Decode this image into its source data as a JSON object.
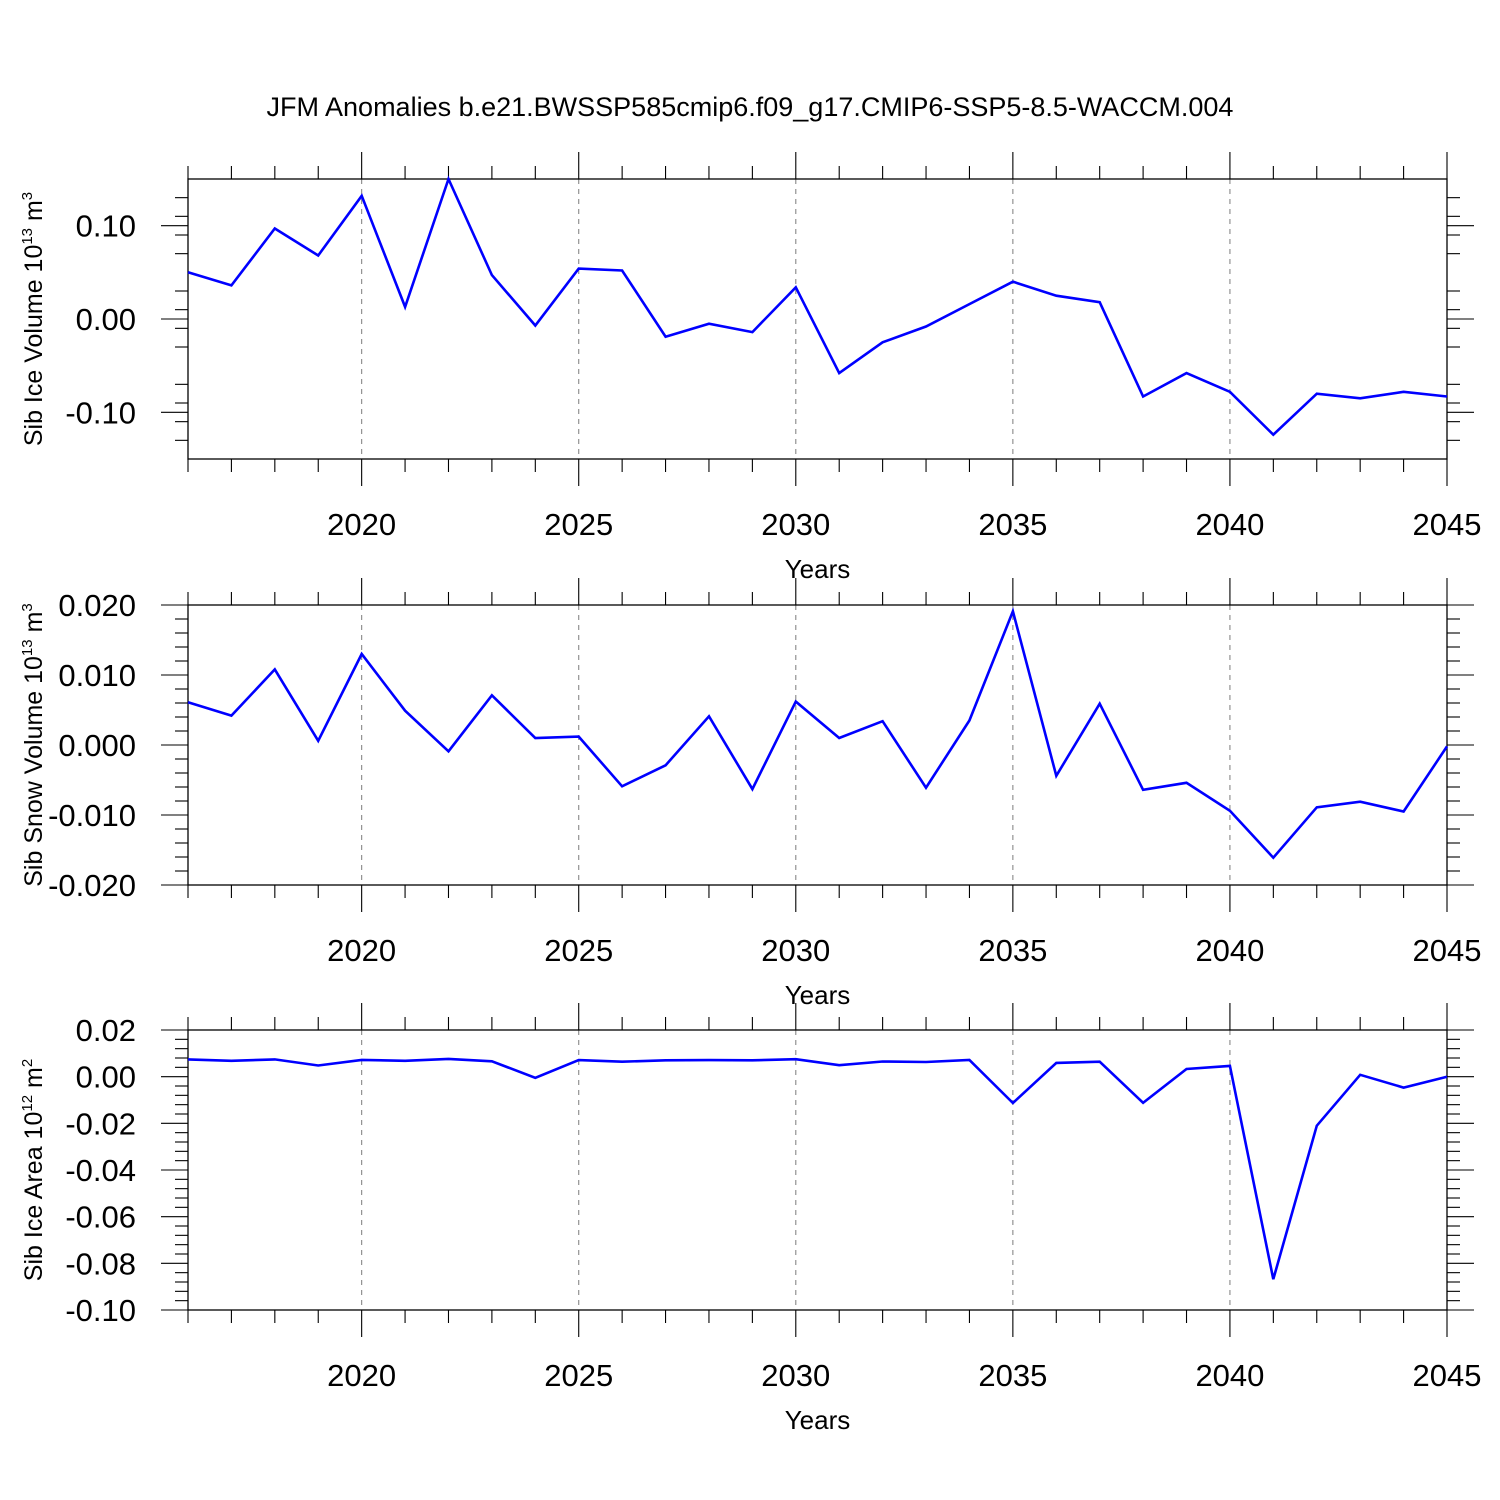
{
  "title": "JFM Anomalies b.e21.BWSSP585cmip6.f09_g17.CMIP6-SSP5-8.5-WACCM.004",
  "colors": {
    "series": "#0000ff",
    "grid": "#888888",
    "axis": "#000000"
  },
  "chart_data": [
    {
      "type": "line",
      "ylabel": {
        "text": "Sib Ice Volume 10",
        "sup": "13",
        "unit": " m",
        "unit_sup": "3"
      },
      "xlabel": "Years",
      "xlim": [
        2016,
        2045
      ],
      "ylim": [
        -0.15,
        0.15
      ],
      "yticks": [
        -0.1,
        0.0,
        0.1
      ],
      "ytick_labels": [
        "-0.10",
        "0.00",
        "0.10"
      ],
      "xticks": [
        2020,
        2025,
        2030,
        2035,
        2040,
        2045
      ],
      "xtick_labels": [
        "2020",
        "2025",
        "2030",
        "2035",
        "2040",
        "2045"
      ],
      "grid": "vertical dashed at labeled years",
      "x": [
        2016,
        2017,
        2018,
        2019,
        2020,
        2021,
        2022,
        2023,
        2024,
        2025,
        2026,
        2027,
        2028,
        2029,
        2030,
        2031,
        2032,
        2033,
        2034,
        2035,
        2036,
        2037,
        2038,
        2039,
        2040,
        2041,
        2042,
        2043,
        2044,
        2045
      ],
      "values": [
        0.05,
        0.036,
        0.097,
        0.068,
        0.132,
        0.013,
        0.15,
        0.047,
        -0.007,
        0.054,
        0.052,
        -0.019,
        -0.005,
        -0.014,
        0.034,
        -0.058,
        -0.025,
        -0.008,
        0.016,
        0.04,
        0.025,
        0.018,
        -0.083,
        -0.058,
        -0.078,
        -0.124,
        -0.08,
        -0.085,
        -0.078,
        -0.083
      ]
    },
    {
      "type": "line",
      "ylabel": {
        "text": "Sib Snow Volume 10",
        "sup": "13",
        "unit": " m",
        "unit_sup": "3"
      },
      "xlabel": "Years",
      "xlim": [
        2016,
        2045
      ],
      "ylim": [
        -0.02,
        0.02
      ],
      "yticks": [
        -0.02,
        -0.01,
        0.0,
        0.01,
        0.02
      ],
      "ytick_labels": [
        "-0.020",
        "-0.010",
        "0.000",
        "0.010",
        "0.020"
      ],
      "xticks": [
        2020,
        2025,
        2030,
        2035,
        2040,
        2045
      ],
      "xtick_labels": [
        "2020",
        "2025",
        "2030",
        "2035",
        "2040",
        "2045"
      ],
      "grid": "vertical dashed at labeled years",
      "x": [
        2016,
        2017,
        2018,
        2019,
        2020,
        2021,
        2022,
        2023,
        2024,
        2025,
        2026,
        2027,
        2028,
        2029,
        2030,
        2031,
        2032,
        2033,
        2034,
        2035,
        2036,
        2037,
        2038,
        2039,
        2040,
        2041,
        2042,
        2043,
        2044,
        2045
      ],
      "values": [
        0.0061,
        0.0042,
        0.0108,
        0.0006,
        0.013,
        0.0049,
        -0.0009,
        0.0071,
        0.001,
        0.0012,
        -0.0059,
        -0.0029,
        0.0041,
        -0.0063,
        0.0062,
        0.001,
        0.0034,
        -0.0061,
        0.0035,
        0.0191,
        -0.0044,
        0.0059,
        -0.0064,
        -0.0054,
        -0.0094,
        -0.0161,
        -0.0089,
        -0.0081,
        -0.0095,
        -0.0002
      ]
    },
    {
      "type": "line",
      "ylabel": {
        "text": "Sib Ice Area 10",
        "sup": "12",
        "unit": " m",
        "unit_sup": "2"
      },
      "xlabel": "Years",
      "xlim": [
        2016,
        2045
      ],
      "ylim": [
        -0.1,
        0.02
      ],
      "yticks": [
        -0.1,
        -0.08,
        -0.06,
        -0.04,
        -0.02,
        0.0,
        0.02
      ],
      "ytick_labels": [
        "-0.10",
        "-0.08",
        "-0.06",
        "-0.04",
        "-0.02",
        "0.00",
        "0.02"
      ],
      "xticks": [
        2020,
        2025,
        2030,
        2035,
        2040,
        2045
      ],
      "xtick_labels": [
        "2020",
        "2025",
        "2030",
        "2035",
        "2040",
        "2045"
      ],
      "grid": "vertical dashed at labeled years",
      "x": [
        2016,
        2017,
        2018,
        2019,
        2020,
        2021,
        2022,
        2023,
        2024,
        2025,
        2026,
        2027,
        2028,
        2029,
        2030,
        2031,
        2032,
        2033,
        2034,
        2035,
        2036,
        2037,
        2038,
        2039,
        2040,
        2041,
        2042,
        2043,
        2044,
        2045
      ],
      "values": [
        0.0074,
        0.0068,
        0.0074,
        0.0048,
        0.0072,
        0.0068,
        0.0076,
        0.0066,
        -0.0005,
        0.0071,
        0.0064,
        0.007,
        0.0071,
        0.007,
        0.0075,
        0.0049,
        0.0065,
        0.0063,
        0.0072,
        -0.0113,
        0.0059,
        0.0064,
        -0.0112,
        0.0033,
        0.0046,
        -0.0868,
        -0.021,
        0.0008,
        -0.0047,
        0.0
      ]
    }
  ]
}
